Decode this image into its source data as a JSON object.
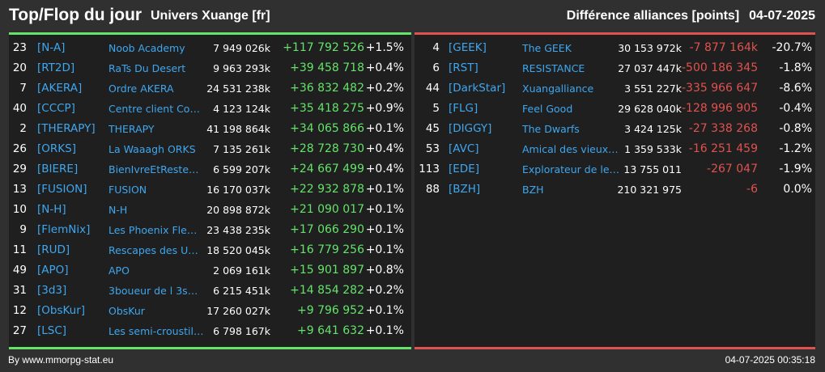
{
  "header": {
    "title": "Top/Flop du jour",
    "universe": "Univers Xuange [fr]",
    "metric": "Différence alliances [points]",
    "date": "04-07-2025"
  },
  "colors": {
    "positive": "#64e36a",
    "negative": "#e0524f",
    "link": "#3ea7ef",
    "background": "#303030",
    "panel": "#1f1f1f"
  },
  "top": [
    {
      "rank": "23",
      "tag": "[N-A]",
      "name": "Noob Academy",
      "points": "7 949 026k",
      "diff": "+117 792 526",
      "pct": "+1.5%"
    },
    {
      "rank": "20",
      "tag": "[RT2D]",
      "name": "RaTs Du Desert",
      "points": "9 963 293k",
      "diff": "+39 458 718",
      "pct": "+0.4%"
    },
    {
      "rank": "7",
      "tag": "[AKERA]",
      "name": "Ordre AKERA",
      "points": "24 531 238k",
      "diff": "+36 832 482",
      "pct": "+0.2%"
    },
    {
      "rank": "40",
      "tag": "[CCCP]",
      "name": "Centre client Com...",
      "points": "4 123 124k",
      "diff": "+35 418 275",
      "pct": "+0.9%"
    },
    {
      "rank": "2",
      "tag": "[THERAPY]",
      "name": "THERAPY",
      "points": "41 198 864k",
      "diff": "+34 065 866",
      "pct": "+0.1%"
    },
    {
      "rank": "26",
      "tag": "[ORKS]",
      "name": "La Waaagh ORKS",
      "points": "7 135 261k",
      "diff": "+28 728 730",
      "pct": "+0.4%"
    },
    {
      "rank": "29",
      "tag": "[BIERE]",
      "name": "BienIvreEtResteECU",
      "points": "6 599 207k",
      "diff": "+24 667 499",
      "pct": "+0.4%"
    },
    {
      "rank": "13",
      "tag": "[FUSION]",
      "name": "FUSION",
      "points": "16 170 037k",
      "diff": "+22 932 878",
      "pct": "+0.1%"
    },
    {
      "rank": "10",
      "tag": "[N-H]",
      "name": "N-H",
      "points": "20 898 872k",
      "diff": "+21 090 017",
      "pct": "+0.1%"
    },
    {
      "rank": "9",
      "tag": "[FlemNix]",
      "name": "Les Phoenix Flem...",
      "points": "23 438 235k",
      "diff": "+17 066 290",
      "pct": "+0.1%"
    },
    {
      "rank": "11",
      "tag": "[RUD]",
      "name": "Rescapes des Univ...",
      "points": "18 520 045k",
      "diff": "+16 779 256",
      "pct": "+0.1%"
    },
    {
      "rank": "49",
      "tag": "[APO]",
      "name": "APO",
      "points": "2 069 161k",
      "diff": "+15 901 897",
      "pct": "+0.8%"
    },
    {
      "rank": "31",
      "tag": "[3d3]",
      "name": "3boueur de l 3space",
      "points": "6 215 451k",
      "diff": "+14 854 282",
      "pct": "+0.2%"
    },
    {
      "rank": "12",
      "tag": "[ObsKur]",
      "name": "ObsKur",
      "points": "17 260 027k",
      "diff": "+9 796 952",
      "pct": "+0.1%"
    },
    {
      "rank": "27",
      "tag": "[LSC]",
      "name": "Les semi-croustilla...",
      "points": "6 798 167k",
      "diff": "+9 641 632",
      "pct": "+0.1%"
    }
  ],
  "flop": [
    {
      "rank": "4",
      "tag": "[GEEK]",
      "name": "The GEEK",
      "points": "30 153 972k",
      "diff": "-7 877 164k",
      "pct": "-20.7%"
    },
    {
      "rank": "6",
      "tag": "[RST]",
      "name": "RESISTANCE",
      "points": "27 037 447k",
      "diff": "-500 186 345",
      "pct": "-1.8%"
    },
    {
      "rank": "44",
      "tag": "[DarkStar]",
      "name": "Xuangalliance",
      "points": "3 551 227k",
      "diff": "-335 966 647",
      "pct": "-8.6%"
    },
    {
      "rank": "5",
      "tag": "[FLG]",
      "name": "Feel Good",
      "points": "29 628 040k",
      "diff": "-128 996 905",
      "pct": "-0.4%"
    },
    {
      "rank": "45",
      "tag": "[DIGGY]",
      "name": "The Dwarfs",
      "points": "3 424 125k",
      "diff": "-27 338 268",
      "pct": "-0.8%"
    },
    {
      "rank": "53",
      "tag": "[AVC]",
      "name": "Amical des vieux co...",
      "points": "1 359 533k",
      "diff": "-16 251 459",
      "pct": "-1.2%"
    },
    {
      "rank": "113",
      "tag": "[EDE]",
      "name": "Explorateur de lesp...",
      "points": "13 755 011",
      "diff": "-267 047",
      "pct": "-1.9%"
    },
    {
      "rank": "88",
      "tag": "[BZH]",
      "name": "BZH",
      "points": "210 321 975",
      "diff": "-6",
      "pct": "0.0%"
    }
  ],
  "footer": {
    "source": "By www.mmorpg-stat.eu",
    "timestamp": "04-07-2025 00:35:18"
  }
}
